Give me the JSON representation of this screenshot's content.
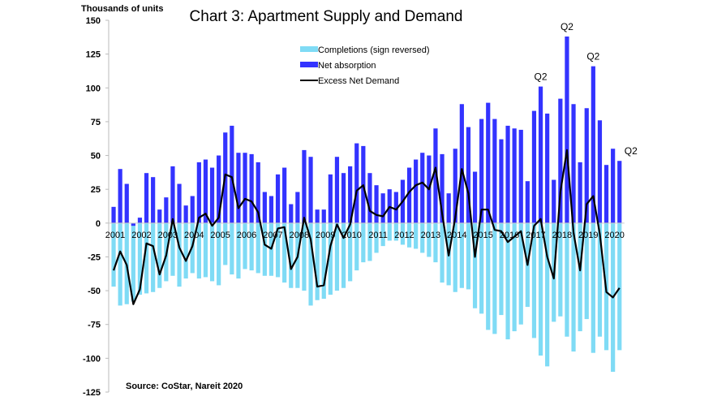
{
  "chart_data": {
    "type": "bar",
    "title": "Chart 3: Apartment Supply and Demand",
    "ylabel": "Thousands of units",
    "source": "Source: CoStar, Nareit 2020",
    "ylim": [
      -125,
      150
    ],
    "yticks": [
      150,
      125,
      100,
      75,
      50,
      25,
      0,
      -25,
      -50,
      -75,
      -100,
      -125
    ],
    "years": [
      "2001",
      "2002",
      "2003",
      "2004",
      "2005",
      "2006",
      "2007",
      "2008",
      "2009",
      "2010",
      "2011",
      "2012",
      "2013",
      "2014",
      "2015",
      "2016",
      "2017",
      "2018",
      "2019",
      "2020"
    ],
    "frequency": "quarterly, 2001 Q1 - 2020 Q2",
    "grid": false,
    "legend_placement": "top-center",
    "colors": {
      "completions": "#7FDBF5",
      "absorption": "#3333FF",
      "excess": "#000000"
    },
    "series": [
      {
        "name": "Completions (sign reversed)",
        "kind": "bar",
        "values": [
          -47,
          -61,
          -60,
          -58,
          -53,
          -52,
          -51,
          -48,
          -43,
          -39,
          -47,
          -41,
          -37,
          -41,
          -40,
          -43,
          -46,
          -31,
          -38,
          -41,
          -34,
          -35,
          -37,
          -39,
          -39,
          -40,
          -44,
          -48,
          -48,
          -50,
          -61,
          -57,
          -56,
          -53,
          -50,
          -48,
          -43,
          -35,
          -29,
          -28,
          -22,
          -17,
          -13,
          -13,
          -16,
          -18,
          -19,
          -22,
          -25,
          -29,
          -44,
          -46,
          -51,
          -48,
          -49,
          -63,
          -67,
          -79,
          -82,
          -68,
          -86,
          -80,
          -75,
          -62,
          -85,
          -98,
          -106,
          -73,
          -69,
          -84,
          -95,
          -80,
          -71,
          -96,
          -84,
          -94,
          -110,
          -94
        ]
      },
      {
        "name": "Net absorption",
        "kind": "bar",
        "values": [
          12,
          40,
          29,
          -2,
          4,
          37,
          34,
          10,
          19,
          42,
          29,
          13,
          20,
          45,
          47,
          41,
          50,
          67,
          72,
          52,
          52,
          51,
          45,
          23,
          20,
          36,
          41,
          14,
          23,
          54,
          49,
          10,
          10,
          36,
          49,
          37,
          42,
          59,
          57,
          37,
          28,
          22,
          25,
          23,
          32,
          41,
          47,
          52,
          50,
          70,
          51,
          22,
          55,
          88,
          71,
          38,
          77,
          89,
          77,
          62,
          72,
          70,
          69,
          31,
          83,
          101,
          81,
          32,
          92,
          138,
          88,
          45,
          85,
          116,
          76,
          43,
          55,
          46
        ]
      },
      {
        "name": "Excess Net Demand",
        "kind": "line",
        "values": "net absorption + completions (sign reversed)"
      }
    ],
    "annotations": [
      {
        "text": "Q2",
        "quarter": "2017 Q2"
      },
      {
        "text": "Q2",
        "quarter": "2018 Q2"
      },
      {
        "text": "Q2",
        "quarter": "2019 Q2"
      },
      {
        "text": "Q2",
        "quarter": "2020 Q2"
      }
    ]
  }
}
